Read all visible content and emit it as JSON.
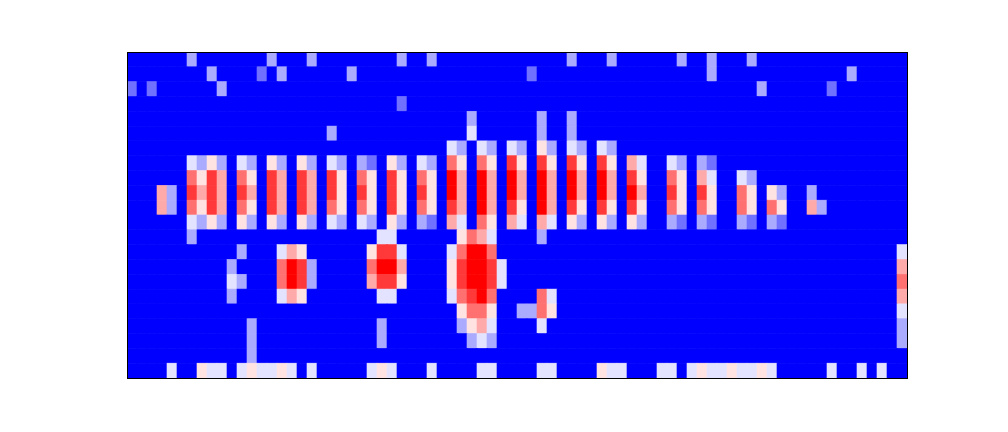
{
  "chart_data": {
    "type": "heatmap",
    "color": "bwr",
    "tick_labels": false,
    "xlim": [
      0,
      78
    ],
    "ylim": [
      0,
      22
    ],
    "zlim": [
      0,
      9
    ],
    "cells": [
      [
        0,
        0,
        0,
        0,
        0,
        0,
        3,
        0,
        0,
        0,
        0,
        0,
        0,
        0,
        3,
        0,
        0,
        0,
        3,
        0,
        0,
        0,
        0,
        0,
        0,
        0,
        0,
        3,
        0,
        0,
        3,
        0,
        0,
        0,
        0,
        0,
        0,
        0,
        0,
        0,
        0,
        0,
        0,
        0,
        3,
        0,
        0,
        0,
        3,
        0,
        0,
        0,
        0,
        0,
        0,
        3,
        0,
        0,
        3,
        0,
        0,
        0,
        3,
        0,
        0,
        0,
        0,
        0,
        0,
        0,
        0,
        0,
        0,
        0,
        0,
        0,
        0,
        0
      ],
      [
        0,
        0,
        0,
        0,
        0,
        0,
        0,
        0,
        3,
        0,
        0,
        0,
        0,
        2,
        0,
        3,
        0,
        0,
        0,
        0,
        0,
        0,
        3,
        0,
        0,
        0,
        0,
        0,
        0,
        0,
        0,
        0,
        0,
        0,
        0,
        0,
        0,
        0,
        0,
        0,
        2,
        0,
        0,
        0,
        0,
        0,
        0,
        0,
        0,
        0,
        0,
        0,
        0,
        0,
        0,
        0,
        0,
        0,
        3,
        0,
        0,
        0,
        0,
        0,
        0,
        0,
        0,
        0,
        0,
        0,
        0,
        0,
        3,
        0,
        0,
        0,
        0,
        0
      ],
      [
        2,
        0,
        2,
        0,
        0,
        0,
        0,
        0,
        0,
        3,
        0,
        0,
        0,
        0,
        0,
        0,
        0,
        0,
        0,
        0,
        0,
        0,
        0,
        0,
        0,
        0,
        0,
        0,
        0,
        0,
        0,
        0,
        0,
        0,
        0,
        0,
        0,
        0,
        0,
        0,
        0,
        0,
        0,
        0,
        0,
        0,
        0,
        0,
        0,
        0,
        0,
        0,
        0,
        0,
        0,
        0,
        0,
        0,
        0,
        0,
        0,
        0,
        0,
        3,
        0,
        0,
        0,
        0,
        0,
        0,
        2,
        0,
        0,
        0,
        0,
        0,
        0,
        0
      ],
      [
        0,
        0,
        0,
        0,
        0,
        0,
        0,
        0,
        0,
        0,
        0,
        0,
        0,
        0,
        0,
        0,
        0,
        0,
        0,
        0,
        0,
        0,
        0,
        0,
        0,
        0,
        0,
        2,
        0,
        0,
        0,
        0,
        0,
        0,
        0,
        0,
        0,
        0,
        0,
        0,
        0,
        0,
        0,
        0,
        0,
        0,
        0,
        0,
        0,
        0,
        0,
        0,
        0,
        0,
        0,
        0,
        0,
        0,
        0,
        0,
        0,
        0,
        0,
        0,
        0,
        0,
        0,
        0,
        0,
        0,
        0,
        0,
        0,
        0,
        0,
        0,
        0,
        0
      ],
      [
        0,
        0,
        0,
        0,
        0,
        0,
        0,
        0,
        0,
        0,
        0,
        0,
        0,
        0,
        0,
        0,
        0,
        0,
        0,
        0,
        0,
        0,
        0,
        0,
        0,
        0,
        0,
        0,
        0,
        0,
        0,
        0,
        0,
        0,
        3,
        0,
        0,
        0,
        0,
        0,
        0,
        3,
        0,
        0,
        3,
        0,
        0,
        0,
        0,
        0,
        0,
        0,
        0,
        0,
        0,
        0,
        0,
        0,
        0,
        0,
        0,
        0,
        0,
        0,
        0,
        0,
        0,
        0,
        0,
        0,
        0,
        0,
        0,
        0,
        0,
        0,
        0,
        0
      ],
      [
        0,
        0,
        0,
        0,
        0,
        0,
        0,
        0,
        0,
        0,
        0,
        0,
        0,
        0,
        0,
        0,
        0,
        0,
        0,
        0,
        3,
        0,
        0,
        0,
        0,
        0,
        0,
        0,
        0,
        0,
        0,
        0,
        0,
        0,
        4,
        0,
        0,
        0,
        0,
        0,
        0,
        3,
        0,
        0,
        3,
        0,
        0,
        0,
        0,
        0,
        0,
        0,
        0,
        0,
        0,
        0,
        0,
        0,
        0,
        0,
        0,
        0,
        0,
        0,
        0,
        0,
        0,
        0,
        0,
        0,
        0,
        0,
        0,
        0,
        0,
        0,
        0,
        0
      ],
      [
        0,
        0,
        0,
        0,
        0,
        0,
        0,
        0,
        0,
        0,
        0,
        0,
        0,
        0,
        0,
        0,
        0,
        0,
        0,
        0,
        0,
        0,
        0,
        0,
        0,
        0,
        0,
        0,
        0,
        0,
        0,
        0,
        4,
        3,
        0,
        4,
        3,
        0,
        4,
        3,
        0,
        5,
        3,
        0,
        4,
        3,
        0,
        4,
        3,
        0,
        0,
        0,
        0,
        0,
        0,
        0,
        0,
        0,
        0,
        0,
        0,
        0,
        0,
        0,
        0,
        0,
        0,
        0,
        0,
        0,
        0,
        0,
        0,
        0,
        0,
        0,
        0,
        0
      ],
      [
        0,
        0,
        0,
        0,
        0,
        0,
        4,
        3,
        5,
        3,
        0,
        4,
        3,
        0,
        5,
        3,
        0,
        5,
        3,
        0,
        4,
        3,
        0,
        3,
        2,
        0,
        5,
        3,
        0,
        4,
        3,
        0,
        7,
        5,
        0,
        7,
        5,
        0,
        8,
        5,
        0,
        8,
        5,
        0,
        8,
        5,
        0,
        8,
        5,
        0,
        6,
        4,
        0,
        0,
        4,
        3,
        0,
        3,
        2,
        0,
        0,
        0,
        0,
        0,
        0,
        0,
        0,
        0,
        0,
        0,
        0,
        0,
        0,
        0,
        0,
        0,
        0,
        0
      ],
      [
        0,
        0,
        0,
        0,
        0,
        0,
        7,
        5,
        8,
        6,
        0,
        7,
        5,
        0,
        8,
        6,
        0,
        8,
        6,
        0,
        8,
        5,
        0,
        7,
        5,
        0,
        8,
        5,
        0,
        7,
        5,
        0,
        9,
        6,
        0,
        9,
        6,
        0,
        9,
        6,
        0,
        9,
        6,
        0,
        9,
        6,
        0,
        9,
        6,
        0,
        8,
        5,
        0,
        0,
        7,
        5,
        0,
        6,
        4,
        0,
        0,
        4,
        3,
        0,
        0,
        0,
        0,
        0,
        0,
        0,
        0,
        0,
        0,
        0,
        0,
        0,
        0,
        0
      ],
      [
        0,
        0,
        0,
        6,
        3,
        0,
        8,
        6,
        8,
        6,
        0,
        8,
        6,
        0,
        8,
        6,
        0,
        8,
        6,
        0,
        8,
        5,
        0,
        8,
        5,
        0,
        8,
        5,
        0,
        8,
        5,
        0,
        9,
        6,
        0,
        9,
        6,
        0,
        9,
        6,
        0,
        9,
        6,
        0,
        9,
        6,
        0,
        9,
        6,
        0,
        9,
        6,
        0,
        0,
        8,
        5,
        0,
        8,
        5,
        0,
        0,
        7,
        5,
        0,
        5,
        3,
        0,
        0,
        3,
        0,
        0,
        0,
        0,
        0,
        0,
        0,
        0,
        0
      ],
      [
        0,
        0,
        0,
        6,
        3,
        0,
        7,
        5,
        8,
        6,
        0,
        7,
        5,
        0,
        8,
        6,
        0,
        8,
        6,
        0,
        7,
        5,
        0,
        7,
        5,
        0,
        8,
        5,
        0,
        7,
        5,
        0,
        8,
        6,
        0,
        9,
        6,
        0,
        8,
        5,
        0,
        9,
        6,
        0,
        8,
        5,
        0,
        8,
        5,
        0,
        8,
        5,
        0,
        0,
        7,
        5,
        0,
        7,
        5,
        0,
        0,
        7,
        5,
        0,
        7,
        5,
        0,
        0,
        6,
        3,
        0,
        0,
        0,
        0,
        0,
        0,
        0,
        0
      ],
      [
        0,
        0,
        0,
        0,
        0,
        0,
        4,
        3,
        5,
        3,
        0,
        5,
        3,
        0,
        5,
        3,
        0,
        5,
        3,
        0,
        4,
        3,
        0,
        4,
        3,
        0,
        5,
        3,
        0,
        3,
        2,
        0,
        6,
        4,
        0,
        7,
        5,
        0,
        6,
        4,
        0,
        6,
        4,
        0,
        5,
        3,
        0,
        5,
        3,
        0,
        5,
        3,
        0,
        0,
        3,
        2,
        0,
        3,
        2,
        0,
        0,
        3,
        2,
        0,
        3,
        2,
        0,
        0,
        0,
        0,
        0,
        0,
        0,
        0,
        0,
        0,
        0,
        0
      ],
      [
        0,
        0,
        0,
        0,
        0,
        0,
        3,
        0,
        0,
        0,
        0,
        0,
        0,
        0,
        0,
        0,
        0,
        0,
        0,
        0,
        0,
        0,
        0,
        0,
        0,
        4,
        4,
        0,
        0,
        0,
        0,
        0,
        0,
        5,
        7,
        6,
        4,
        0,
        0,
        0,
        0,
        3,
        0,
        0,
        0,
        0,
        0,
        0,
        0,
        0,
        0,
        0,
        0,
        0,
        0,
        0,
        0,
        0,
        0,
        0,
        0,
        0,
        0,
        0,
        0,
        0,
        0,
        0,
        0,
        0,
        0,
        0,
        0,
        0,
        0,
        0,
        0,
        0
      ],
      [
        0,
        0,
        0,
        0,
        0,
        0,
        0,
        0,
        0,
        0,
        0,
        3,
        0,
        0,
        0,
        4,
        6,
        5,
        0,
        0,
        0,
        0,
        0,
        0,
        5,
        8,
        8,
        4,
        0,
        0,
        0,
        0,
        4,
        7,
        9,
        9,
        7,
        0,
        0,
        0,
        0,
        0,
        0,
        0,
        0,
        0,
        0,
        0,
        0,
        0,
        0,
        0,
        0,
        0,
        0,
        0,
        0,
        0,
        0,
        0,
        0,
        0,
        0,
        0,
        0,
        0,
        0,
        0,
        0,
        0,
        0,
        0,
        0,
        0,
        0,
        0,
        0,
        4
      ],
      [
        0,
        0,
        0,
        0,
        0,
        0,
        0,
        0,
        0,
        0,
        3,
        0,
        0,
        0,
        0,
        7,
        9,
        8,
        3,
        0,
        0,
        0,
        0,
        0,
        7,
        9,
        9,
        6,
        0,
        0,
        0,
        0,
        5,
        8,
        9,
        9,
        8,
        4,
        0,
        0,
        0,
        0,
        0,
        0,
        0,
        0,
        0,
        0,
        0,
        0,
        0,
        0,
        0,
        0,
        0,
        0,
        0,
        0,
        0,
        0,
        0,
        0,
        0,
        0,
        0,
        0,
        0,
        0,
        0,
        0,
        0,
        0,
        0,
        0,
        0,
        0,
        0,
        6
      ],
      [
        0,
        0,
        0,
        0,
        0,
        0,
        0,
        0,
        0,
        0,
        4,
        3,
        0,
        0,
        0,
        7,
        9,
        8,
        3,
        0,
        0,
        0,
        0,
        0,
        6,
        8,
        8,
        5,
        0,
        0,
        0,
        0,
        5,
        8,
        9,
        9,
        8,
        4,
        0,
        0,
        0,
        0,
        0,
        0,
        0,
        0,
        0,
        0,
        0,
        0,
        0,
        0,
        0,
        0,
        0,
        0,
        0,
        0,
        0,
        0,
        0,
        0,
        0,
        0,
        0,
        0,
        0,
        0,
        0,
        0,
        0,
        0,
        0,
        0,
        0,
        0,
        0,
        7
      ],
      [
        0,
        0,
        0,
        0,
        0,
        0,
        0,
        0,
        0,
        0,
        3,
        0,
        0,
        0,
        0,
        4,
        6,
        5,
        0,
        0,
        0,
        0,
        0,
        0,
        0,
        4,
        4,
        0,
        0,
        0,
        0,
        0,
        4,
        7,
        8,
        9,
        7,
        0,
        0,
        0,
        0,
        7,
        4,
        0,
        0,
        0,
        0,
        0,
        0,
        0,
        0,
        0,
        0,
        0,
        0,
        0,
        0,
        0,
        0,
        0,
        0,
        0,
        0,
        0,
        0,
        0,
        0,
        0,
        0,
        0,
        0,
        0,
        0,
        0,
        0,
        0,
        0,
        6
      ],
      [
        0,
        0,
        0,
        0,
        0,
        0,
        0,
        0,
        0,
        0,
        0,
        0,
        0,
        0,
        0,
        0,
        0,
        0,
        0,
        0,
        0,
        0,
        0,
        0,
        0,
        0,
        0,
        0,
        0,
        0,
        0,
        0,
        0,
        5,
        7,
        7,
        5,
        0,
        0,
        3,
        3,
        7,
        5,
        0,
        0,
        0,
        0,
        0,
        0,
        0,
        0,
        0,
        0,
        0,
        0,
        0,
        0,
        0,
        0,
        0,
        0,
        0,
        0,
        0,
        0,
        0,
        0,
        0,
        0,
        0,
        0,
        0,
        0,
        0,
        0,
        0,
        0,
        4
      ],
      [
        0,
        0,
        0,
        0,
        0,
        0,
        0,
        0,
        0,
        0,
        0,
        0,
        3,
        0,
        0,
        0,
        0,
        0,
        0,
        0,
        0,
        0,
        0,
        0,
        0,
        3,
        0,
        0,
        0,
        0,
        0,
        0,
        0,
        3,
        5,
        6,
        4,
        0,
        0,
        0,
        0,
        4,
        0,
        0,
        0,
        0,
        0,
        0,
        0,
        0,
        0,
        0,
        0,
        0,
        0,
        0,
        0,
        0,
        0,
        0,
        0,
        0,
        0,
        0,
        0,
        0,
        0,
        0,
        0,
        0,
        0,
        0,
        0,
        0,
        0,
        0,
        0,
        3
      ],
      [
        0,
        0,
        0,
        0,
        0,
        0,
        0,
        0,
        0,
        0,
        0,
        0,
        3,
        0,
        0,
        0,
        0,
        0,
        0,
        0,
        0,
        0,
        0,
        0,
        0,
        3,
        0,
        0,
        0,
        0,
        0,
        0,
        0,
        0,
        3,
        4,
        3,
        0,
        0,
        0,
        0,
        0,
        0,
        0,
        0,
        0,
        0,
        0,
        0,
        0,
        0,
        0,
        0,
        0,
        0,
        0,
        0,
        0,
        0,
        0,
        0,
        0,
        0,
        0,
        0,
        0,
        0,
        0,
        0,
        0,
        0,
        0,
        0,
        0,
        0,
        0,
        0,
        3
      ],
      [
        0,
        0,
        0,
        0,
        0,
        0,
        0,
        0,
        0,
        0,
        0,
        0,
        3,
        0,
        0,
        0,
        0,
        0,
        0,
        0,
        0,
        0,
        0,
        0,
        0,
        0,
        0,
        0,
        0,
        0,
        0,
        0,
        0,
        0,
        0,
        0,
        0,
        0,
        0,
        0,
        0,
        0,
        0,
        0,
        0,
        0,
        0,
        0,
        0,
        0,
        0,
        0,
        0,
        0,
        0,
        0,
        0,
        0,
        0,
        0,
        0,
        0,
        0,
        0,
        0,
        0,
        0,
        0,
        0,
        0,
        0,
        0,
        0,
        0,
        0,
        0,
        0,
        0
      ],
      [
        0,
        0,
        0,
        0,
        4,
        0,
        0,
        5,
        4,
        4,
        0,
        4,
        5,
        4,
        4,
        5,
        4,
        0,
        4,
        0,
        0,
        0,
        0,
        0,
        4,
        5,
        4,
        0,
        0,
        0,
        4,
        0,
        0,
        0,
        0,
        4,
        4,
        0,
        0,
        0,
        0,
        4,
        4,
        0,
        0,
        0,
        0,
        5,
        4,
        4,
        0,
        0,
        0,
        4,
        4,
        0,
        4,
        5,
        4,
        4,
        5,
        4,
        4,
        5,
        4,
        0,
        0,
        0,
        0,
        0,
        4,
        0,
        0,
        4,
        0,
        4,
        0,
        0
      ]
    ]
  }
}
